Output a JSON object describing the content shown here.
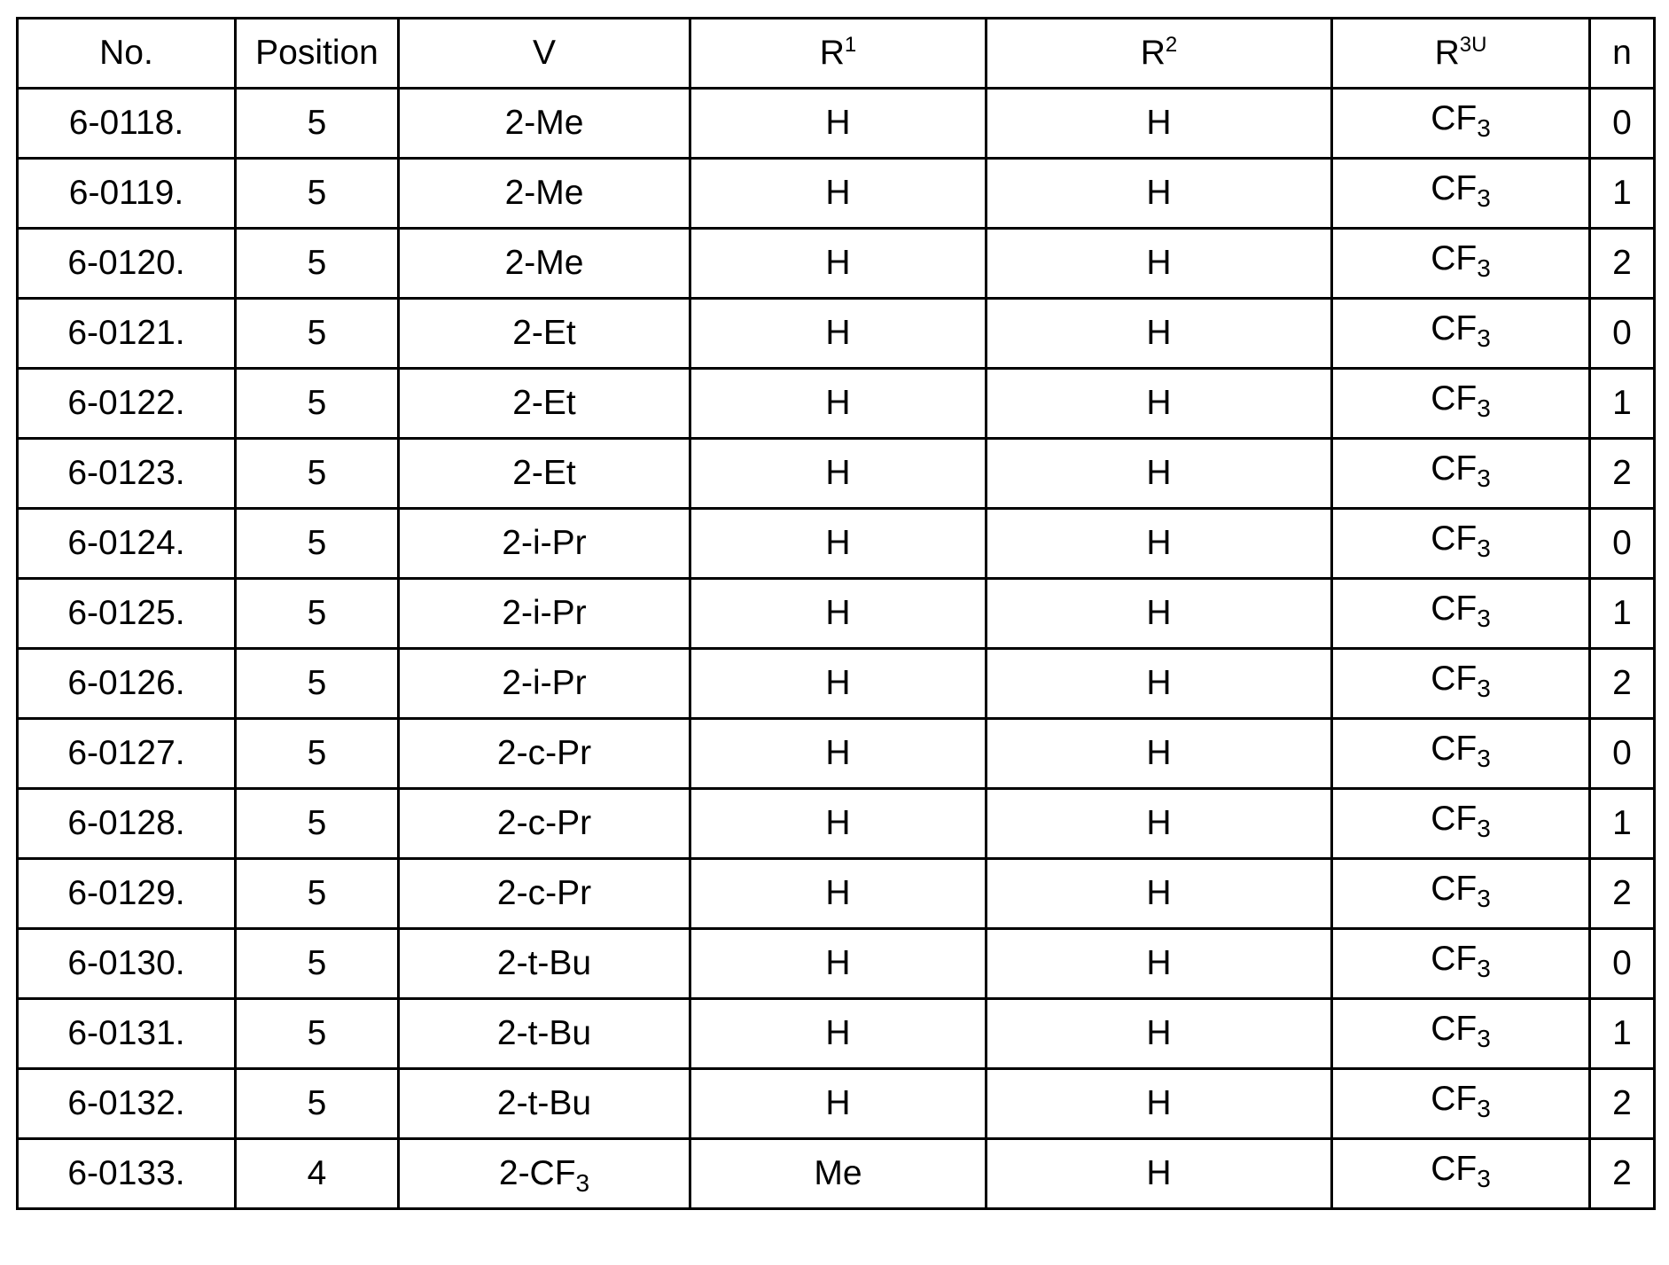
{
  "table": {
    "headers": [
      {
        "base": "No.",
        "sup": ""
      },
      {
        "base": "Position",
        "sup": ""
      },
      {
        "base": "V",
        "sup": ""
      },
      {
        "base": "R",
        "sup": "1"
      },
      {
        "base": "R",
        "sup": "2"
      },
      {
        "base": "R",
        "sup": "3U"
      },
      {
        "base": "n",
        "sup": ""
      }
    ],
    "rows": [
      {
        "no": "6-0118.",
        "position": "5",
        "v": "2-Me",
        "r1": "H",
        "r2": "H",
        "r3u": "CF3",
        "n": "0"
      },
      {
        "no": "6-0119.",
        "position": "5",
        "v": "2-Me",
        "r1": "H",
        "r2": "H",
        "r3u": "CF3",
        "n": "1"
      },
      {
        "no": "6-0120.",
        "position": "5",
        "v": "2-Me",
        "r1": "H",
        "r2": "H",
        "r3u": "CF3",
        "n": "2"
      },
      {
        "no": "6-0121.",
        "position": "5",
        "v": "2-Et",
        "r1": "H",
        "r2": "H",
        "r3u": "CF3",
        "n": "0"
      },
      {
        "no": "6-0122.",
        "position": "5",
        "v": "2-Et",
        "r1": "H",
        "r2": "H",
        "r3u": "CF3",
        "n": "1"
      },
      {
        "no": "6-0123.",
        "position": "5",
        "v": "2-Et",
        "r1": "H",
        "r2": "H",
        "r3u": "CF3",
        "n": "2"
      },
      {
        "no": "6-0124.",
        "position": "5",
        "v": "2-i-Pr",
        "r1": "H",
        "r2": "H",
        "r3u": "CF3",
        "n": "0"
      },
      {
        "no": "6-0125.",
        "position": "5",
        "v": "2-i-Pr",
        "r1": "H",
        "r2": "H",
        "r3u": "CF3",
        "n": "1"
      },
      {
        "no": "6-0126.",
        "position": "5",
        "v": "2-i-Pr",
        "r1": "H",
        "r2": "H",
        "r3u": "CF3",
        "n": "2"
      },
      {
        "no": "6-0127.",
        "position": "5",
        "v": "2-c-Pr",
        "r1": "H",
        "r2": "H",
        "r3u": "CF3",
        "n": "0"
      },
      {
        "no": "6-0128.",
        "position": "5",
        "v": "2-c-Pr",
        "r1": "H",
        "r2": "H",
        "r3u": "CF3",
        "n": "1"
      },
      {
        "no": "6-0129.",
        "position": "5",
        "v": "2-c-Pr",
        "r1": "H",
        "r2": "H",
        "r3u": "CF3",
        "n": "2"
      },
      {
        "no": "6-0130.",
        "position": "5",
        "v": "2-t-Bu",
        "r1": "H",
        "r2": "H",
        "r3u": "CF3",
        "n": "0"
      },
      {
        "no": "6-0131.",
        "position": "5",
        "v": "2-t-Bu",
        "r1": "H",
        "r2": "H",
        "r3u": "CF3",
        "n": "1"
      },
      {
        "no": "6-0132.",
        "position": "5",
        "v": "2-t-Bu",
        "r1": "H",
        "r2": "H",
        "r3u": "CF3",
        "n": "2"
      },
      {
        "no": "6-0133.",
        "position": "4",
        "v": "2-CF3",
        "r1": "Me",
        "r2": "H",
        "r3u": "CF3",
        "n": "2"
      }
    ]
  }
}
